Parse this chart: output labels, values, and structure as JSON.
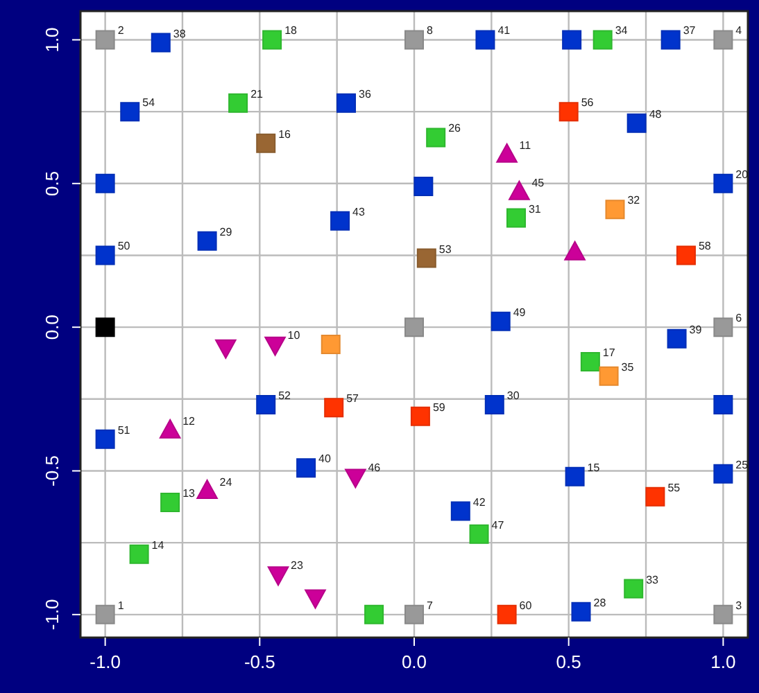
{
  "chart_data": {
    "type": "scatter",
    "xlim": [
      -1.08,
      1.08
    ],
    "ylim": [
      -1.08,
      1.1
    ],
    "xticks": [
      {
        "value": -1,
        "label": "-1.0"
      },
      {
        "value": -0.75,
        "label": null
      },
      {
        "value": -0.5,
        "label": "-0.5"
      },
      {
        "value": -0.25,
        "label": null
      },
      {
        "value": 0,
        "label": "0.0"
      },
      {
        "value": 0.25,
        "label": null
      },
      {
        "value": 0.5,
        "label": "0.5"
      },
      {
        "value": 0.75,
        "label": null
      },
      {
        "value": 1,
        "label": "1.0"
      }
    ],
    "yticks": [
      {
        "value": -1,
        "label": "-1.0"
      },
      {
        "value": -0.75,
        "label": null
      },
      {
        "value": -0.5,
        "label": "-0.5"
      },
      {
        "value": -0.25,
        "label": null
      },
      {
        "value": 0,
        "label": "0.0"
      },
      {
        "value": 0.25,
        "label": null
      },
      {
        "value": 0.5,
        "label": "0.5"
      },
      {
        "value": 0.75,
        "label": null
      },
      {
        "value": 1,
        "label": "1.0"
      }
    ],
    "grid": true,
    "series": [
      {
        "color": "#999999",
        "marker": "square",
        "x": [
          -1,
          0,
          1,
          0,
          1,
          -1,
          0,
          1
        ],
        "values": [
          1,
          1,
          1,
          0,
          0,
          -1,
          -1,
          -1
        ]
      },
      {
        "color": "#000000",
        "marker": "square",
        "x": [
          -1
        ],
        "values": [
          0
        ]
      },
      {
        "color": "#0033cc",
        "marker": "square",
        "x": [
          -0.82,
          -0.92,
          -1,
          -1,
          -0.67,
          -0.22,
          -0.24,
          0.23,
          0.51,
          0.83,
          0.72,
          1,
          0.03,
          0.28,
          0.85,
          1,
          1,
          0.26,
          0.52,
          0.15,
          0.54,
          -0.48,
          -0.35,
          -1
        ],
        "values": [
          0.99,
          0.75,
          0.5,
          0.25,
          0.3,
          0.78,
          0.37,
          1,
          1,
          1,
          0.71,
          0.5,
          0.49,
          0.02,
          -0.04,
          -0.27,
          -0.51,
          -0.27,
          -0.52,
          -0.64,
          -0.99,
          -0.27,
          -0.49,
          -0.39
        ]
      },
      {
        "color": "#33cc33",
        "marker": "square",
        "x": [
          -0.46,
          -0.57,
          0.07,
          0.33,
          0.61,
          0.57,
          -0.79,
          -0.89,
          0.21,
          0.71,
          -0.13
        ],
        "values": [
          1,
          0.78,
          0.66,
          0.38,
          1,
          -0.12,
          -0.61,
          -0.79,
          -0.72,
          -0.91,
          -1
        ]
      },
      {
        "color": "#996633",
        "marker": "square",
        "x": [
          -0.48,
          0.04
        ],
        "values": [
          0.64,
          0.24
        ]
      },
      {
        "color": "#ff9933",
        "marker": "square",
        "x": [
          0.65,
          0.63,
          -0.27
        ],
        "values": [
          0.41,
          -0.17,
          -0.06
        ]
      },
      {
        "color": "#ff3300",
        "marker": "square",
        "x": [
          0.5,
          0.88,
          -0.26,
          0.02,
          0.78,
          0.3
        ],
        "values": [
          0.75,
          0.25,
          -0.28,
          -0.31,
          -0.59,
          -1
        ]
      },
      {
        "color": "#cc0099",
        "marker": "triangle",
        "x": [
          0.3,
          0.34,
          0.52,
          -0.79,
          -0.67
        ],
        "values": [
          0.6,
          0.47,
          0.26,
          -0.36,
          -0.57
        ]
      },
      {
        "color": "#cc0099",
        "marker": "triangle-down",
        "x": [
          -0.61,
          -0.45,
          -0.19,
          -0.44,
          -0.32
        ],
        "values": [
          -0.07,
          -0.06,
          -0.52,
          -0.86,
          -0.94
        ]
      }
    ],
    "annotations": [
      {
        "text": "2",
        "x": -1,
        "y": 1
      },
      {
        "text": "8",
        "x": 0,
        "y": 1
      },
      {
        "text": "4",
        "x": 1,
        "y": 1
      },
      {
        "text": "6",
        "x": 1,
        "y": 0
      },
      {
        "text": "1",
        "x": -1,
        "y": -1
      },
      {
        "text": "7",
        "x": 0,
        "y": -1
      },
      {
        "text": "3",
        "x": 1,
        "y": -1
      },
      {
        "text": "38",
        "x": -0.82,
        "y": 0.99
      },
      {
        "text": "54",
        "x": -0.92,
        "y": 0.75
      },
      {
        "text": "50",
        "x": -1,
        "y": 0.25
      },
      {
        "text": "29",
        "x": -0.67,
        "y": 0.3
      },
      {
        "text": "36",
        "x": -0.22,
        "y": 0.78
      },
      {
        "text": "43",
        "x": -0.24,
        "y": 0.37
      },
      {
        "text": "41",
        "x": 0.23,
        "y": 1
      },
      {
        "text": "37",
        "x": 0.83,
        "y": 1
      },
      {
        "text": "48",
        "x": 0.72,
        "y": 0.71
      },
      {
        "text": "20",
        "x": 1,
        "y": 0.5
      },
      {
        "text": "49",
        "x": 0.28,
        "y": 0.02
      },
      {
        "text": "39",
        "x": 0.85,
        "y": -0.04
      },
      {
        "text": "25",
        "x": 1,
        "y": -0.51
      },
      {
        "text": "30",
        "x": 0.26,
        "y": -0.27
      },
      {
        "text": "15",
        "x": 0.52,
        "y": -0.52
      },
      {
        "text": "42",
        "x": 0.15,
        "y": -0.64
      },
      {
        "text": "28",
        "x": 0.54,
        "y": -0.99
      },
      {
        "text": "52",
        "x": -0.48,
        "y": -0.27
      },
      {
        "text": "40",
        "x": -0.35,
        "y": -0.49
      },
      {
        "text": "51",
        "x": -1,
        "y": -0.39
      },
      {
        "text": "18",
        "x": -0.46,
        "y": 1
      },
      {
        "text": "21",
        "x": -0.57,
        "y": 0.78
      },
      {
        "text": "26",
        "x": 0.07,
        "y": 0.66
      },
      {
        "text": "31",
        "x": 0.33,
        "y": 0.38
      },
      {
        "text": "34",
        "x": 0.61,
        "y": 1
      },
      {
        "text": "17",
        "x": 0.57,
        "y": -0.12
      },
      {
        "text": "13",
        "x": -0.79,
        "y": -0.61
      },
      {
        "text": "14",
        "x": -0.89,
        "y": -0.79
      },
      {
        "text": "47",
        "x": 0.21,
        "y": -0.72
      },
      {
        "text": "33",
        "x": 0.71,
        "y": -0.91
      },
      {
        "text": "16",
        "x": -0.48,
        "y": 0.64
      },
      {
        "text": "53",
        "x": 0.04,
        "y": 0.24
      },
      {
        "text": "32",
        "x": 0.65,
        "y": 0.41
      },
      {
        "text": "35",
        "x": 0.63,
        "y": -0.17
      },
      {
        "text": "56",
        "x": 0.5,
        "y": 0.75
      },
      {
        "text": "58",
        "x": 0.88,
        "y": 0.25
      },
      {
        "text": "57",
        "x": -0.26,
        "y": -0.28
      },
      {
        "text": "59",
        "x": 0.02,
        "y": -0.31
      },
      {
        "text": "55",
        "x": 0.78,
        "y": -0.59
      },
      {
        "text": "60",
        "x": 0.3,
        "y": -1
      },
      {
        "text": "11",
        "x": 0.3,
        "y": 0.6
      },
      {
        "text": "45",
        "x": 0.34,
        "y": 0.47
      },
      {
        "text": "12",
        "x": -0.79,
        "y": -0.36
      },
      {
        "text": "24",
        "x": -0.67,
        "y": -0.57
      },
      {
        "text": "10",
        "x": -0.45,
        "y": -0.06
      },
      {
        "text": "46",
        "x": -0.19,
        "y": -0.52
      },
      {
        "text": "23",
        "x": -0.44,
        "y": -0.86
      }
    ]
  }
}
